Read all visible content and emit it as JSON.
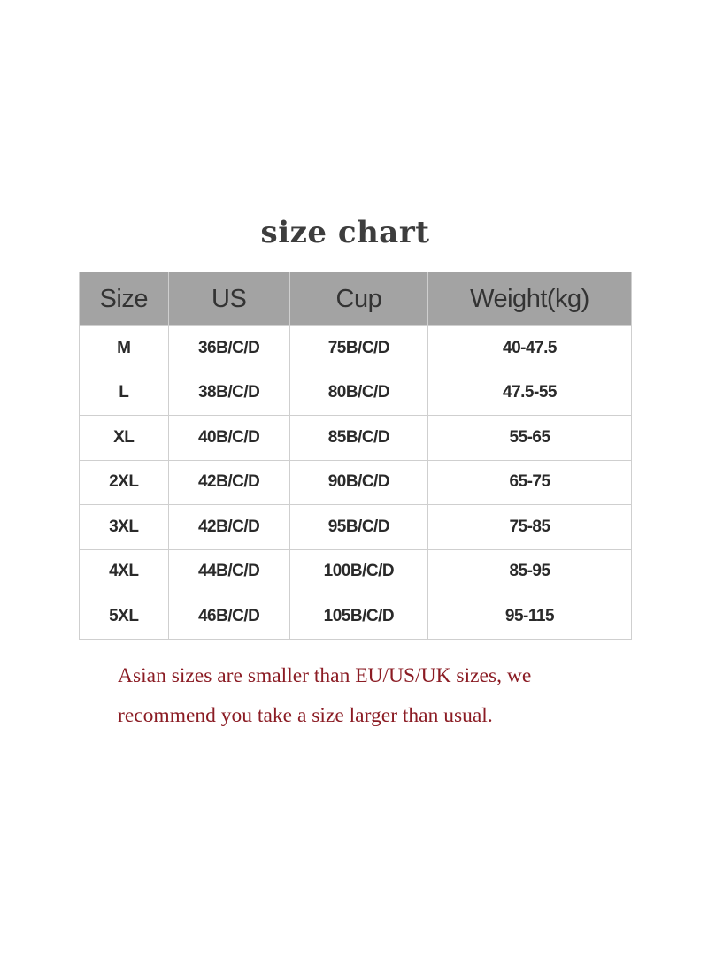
{
  "title": "size chart",
  "table": {
    "headers": [
      "Size",
      "US",
      "Cup",
      "Weight(kg)"
    ],
    "rows": [
      [
        "M",
        "36B/C/D",
        "75B/C/D",
        "40-47.5"
      ],
      [
        "L",
        "38B/C/D",
        "80B/C/D",
        "47.5-55"
      ],
      [
        "XL",
        "40B/C/D",
        "85B/C/D",
        "55-65"
      ],
      [
        "2XL",
        "42B/C/D",
        "90B/C/D",
        "65-75"
      ],
      [
        "3XL",
        "42B/C/D",
        "95B/C/D",
        "75-85"
      ],
      [
        "4XL",
        "44B/C/D",
        "100B/C/D",
        "85-95"
      ],
      [
        "5XL",
        "46B/C/D",
        "105B/C/D",
        "95-115"
      ]
    ]
  },
  "note": {
    "line1": "Asian sizes are smaller than EU/US/UK sizes, we",
    "line2": "recommend you take a size larger than usual."
  },
  "colors": {
    "header_bg": "#a3a3a3",
    "note_text": "#8b1c24"
  }
}
